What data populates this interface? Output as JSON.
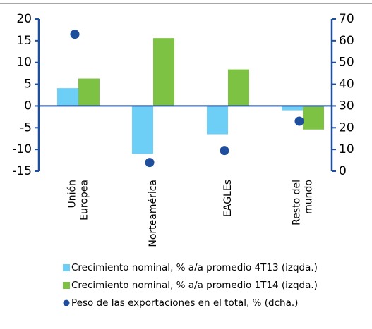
{
  "chart_data": {
    "type": "bar",
    "categories": [
      [
        "Unión",
        "Europea"
      ],
      [
        "Norteamérica"
      ],
      [
        "EAGLEs"
      ],
      [
        "Resto del",
        "mundo"
      ]
    ],
    "series": [
      {
        "name": "Crecimiento nominal, % a/a promedio 4T13 (izqda.)",
        "color": "#6dcff6",
        "type": "bar",
        "values": [
          4.1,
          -11,
          -6.5,
          -1
        ]
      },
      {
        "name": "Crecimiento nominal, % a/a promedio 1T14 (izqda.)",
        "color": "#7dc242",
        "type": "bar",
        "values": [
          6.3,
          15.6,
          8.4,
          -5.4
        ]
      },
      {
        "name": "Peso de las exportaciones en el total, % (dcha.)",
        "color": "#1f4e9c",
        "type": "scatter",
        "axis": "y2",
        "values": [
          63,
          4,
          9.5,
          23
        ]
      }
    ],
    "ylim": [
      -15,
      20
    ],
    "yticks": [
      -15,
      -10,
      -5,
      0,
      5,
      10,
      15,
      20
    ],
    "y2lim": [
      0,
      70
    ],
    "y2ticks": [
      0,
      10,
      20,
      30,
      40,
      50,
      60,
      70
    ]
  }
}
